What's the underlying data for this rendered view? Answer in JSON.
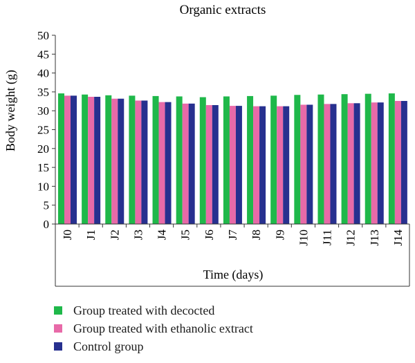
{
  "chart_data": {
    "type": "bar",
    "title": "Organic extracts",
    "xlabel": "Time (days)",
    "ylabel": "Body weight (g)",
    "ylim": [
      0,
      50
    ],
    "yticks": [
      0,
      5,
      10,
      15,
      20,
      25,
      30,
      35,
      40,
      45,
      50
    ],
    "grid": false,
    "legend_position": "bottom",
    "categories": [
      "J0",
      "J1",
      "J2",
      "J3",
      "J4",
      "J5",
      "J6",
      "J7",
      "J8",
      "J9",
      "J10",
      "J11",
      "J12",
      "J13",
      "J14"
    ],
    "series": [
      {
        "name": "Group treated with decocted",
        "color": "#1fb84a",
        "values": [
          34.6,
          34.3,
          34.1,
          34.0,
          33.9,
          33.8,
          33.6,
          33.8,
          33.9,
          34.0,
          34.2,
          34.3,
          34.4,
          34.5,
          34.6
        ]
      },
      {
        "name": "Group treated with ethanolic extract",
        "color": "#e86aa8",
        "values": [
          34.0,
          33.7,
          33.2,
          32.7,
          32.3,
          31.9,
          31.5,
          31.3,
          31.2,
          31.2,
          31.6,
          31.8,
          32.0,
          32.2,
          32.6
        ]
      },
      {
        "name": "Control group",
        "color": "#27308f",
        "values": [
          34.0,
          33.7,
          33.2,
          32.7,
          32.3,
          31.9,
          31.5,
          31.3,
          31.2,
          31.2,
          31.6,
          31.8,
          32.0,
          32.2,
          32.6
        ]
      }
    ]
  }
}
